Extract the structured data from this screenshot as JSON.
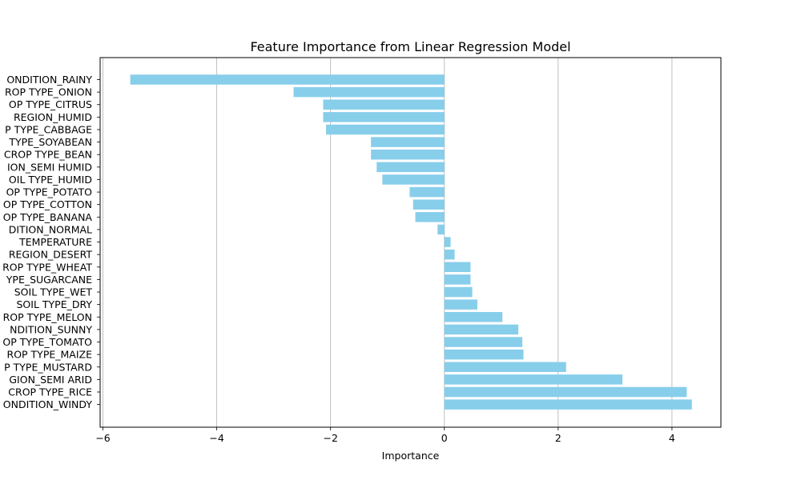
{
  "chart_data": {
    "type": "bar",
    "orientation": "horizontal",
    "title": "Feature Importance from Linear Regression Model",
    "xlabel": "Importance",
    "ylabel": "",
    "xlim": [
      -6.05,
      4.86
    ],
    "xticks": [
      -6,
      -4,
      -2,
      0,
      2,
      4
    ],
    "xtick_labels": [
      "−6",
      "−4",
      "−2",
      "0",
      "2",
      "4"
    ],
    "grid": "x",
    "bar_color": "#87CEEB",
    "category_label_visible_parts": [
      "ONDITION_RAINY",
      "ROP TYPE_ONION",
      "OP TYPE_CITRUS",
      "REGION_HUMID",
      "P TYPE_CABBAGE",
      "TYPE_SOYABEAN",
      "CROP TYPE_BEAN",
      "ION_SEMI HUMID",
      "OIL TYPE_HUMID",
      "OP TYPE_POTATO",
      "OP TYPE_COTTON",
      "OP TYPE_BANANA",
      "DITION_NORMAL",
      "TEMPERATURE",
      "REGION_DESERT",
      "ROP TYPE_WHEAT",
      "YPE_SUGARCANE",
      "SOIL TYPE_WET",
      "SOIL TYPE_DRY",
      "ROP TYPE_MELON",
      "NDITION_SUNNY",
      "OP TYPE_TOMATO",
      "ROP TYPE_MAIZE",
      "P TYPE_MUSTARD",
      "GION_SEMI ARID",
      "CROP TYPE_RICE",
      "ONDITION_WINDY"
    ],
    "values": [
      -5.52,
      -2.65,
      -2.13,
      -2.13,
      -2.08,
      -1.29,
      -1.29,
      -1.19,
      -1.09,
      -0.61,
      -0.55,
      -0.51,
      -0.12,
      0.11,
      0.18,
      0.46,
      0.46,
      0.49,
      0.58,
      1.02,
      1.3,
      1.37,
      1.39,
      2.14,
      3.13,
      4.26,
      4.35
    ]
  }
}
